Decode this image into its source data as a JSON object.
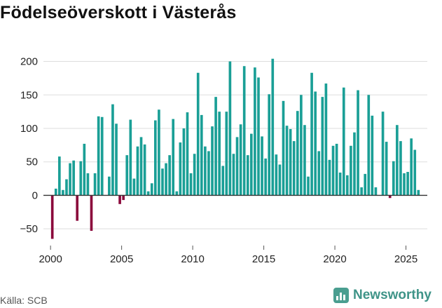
{
  "header": {
    "title": "Födelseöverskott i Västerås"
  },
  "footer": {
    "source": "Källa: SCB",
    "brand": "Newsworthy"
  },
  "colors": {
    "positive": "#1a9f96",
    "negative": "#8b0a3c",
    "grid": "#dddddd",
    "zero_line": "#333333",
    "brand": "#3f9488"
  },
  "chart_data": {
    "type": "bar",
    "title": "Födelseöverskott i Västerås",
    "xlabel": "",
    "ylabel": "",
    "xlim": [
      1999.5,
      2026.5
    ],
    "ylim": [
      -75,
      210
    ],
    "yticks": [
      -50,
      0,
      50,
      100,
      150,
      200
    ],
    "ytick_labels": [
      "−50",
      "0",
      "50",
      "100",
      "150",
      "200"
    ],
    "xticks": [
      2000,
      2005,
      2010,
      2015,
      2020,
      2025
    ],
    "xtick_labels": [
      "2000",
      "2005",
      "2010",
      "2015",
      "2020",
      "2025"
    ],
    "grid": true,
    "x": [
      2000.125,
      2000.375,
      2000.625,
      2000.875,
      2001.125,
      2001.375,
      2001.625,
      2001.875,
      2002.125,
      2002.375,
      2002.625,
      2002.875,
      2003.125,
      2003.375,
      2003.625,
      2003.875,
      2004.125,
      2004.375,
      2004.625,
      2004.875,
      2005.125,
      2005.375,
      2005.625,
      2005.875,
      2006.125,
      2006.375,
      2006.625,
      2006.875,
      2007.125,
      2007.375,
      2007.625,
      2007.875,
      2008.125,
      2008.375,
      2008.625,
      2008.875,
      2009.125,
      2009.375,
      2009.625,
      2009.875,
      2010.125,
      2010.375,
      2010.625,
      2010.875,
      2011.125,
      2011.375,
      2011.625,
      2011.875,
      2012.125,
      2012.375,
      2012.625,
      2012.875,
      2013.125,
      2013.375,
      2013.625,
      2013.875,
      2014.125,
      2014.375,
      2014.625,
      2014.875,
      2015.125,
      2015.375,
      2015.625,
      2015.875,
      2016.125,
      2016.375,
      2016.625,
      2016.875,
      2017.125,
      2017.375,
      2017.625,
      2017.875,
      2018.125,
      2018.375,
      2018.625,
      2018.875,
      2019.125,
      2019.375,
      2019.625,
      2019.875,
      2020.125,
      2020.375,
      2020.625,
      2020.875,
      2021.125,
      2021.375,
      2021.625,
      2021.875,
      2022.125,
      2022.375,
      2022.625,
      2022.875,
      2023.125,
      2023.375,
      2023.625,
      2023.875,
      2024.125,
      2024.375,
      2024.625,
      2024.875,
      2025.125,
      2025.375,
      2025.625,
      2025.875
    ],
    "values": [
      -65,
      10,
      58,
      8,
      24,
      48,
      52,
      -38,
      51,
      77,
      33,
      -53,
      33,
      118,
      117,
      0,
      28,
      136,
      107,
      -13,
      -7,
      60,
      113,
      25,
      73,
      87,
      76,
      6,
      18,
      112,
      128,
      40,
      48,
      60,
      114,
      6,
      79,
      100,
      124,
      33,
      62,
      183,
      120,
      73,
      66,
      103,
      147,
      125,
      44,
      125,
      200,
      62,
      87,
      106,
      193,
      60,
      92,
      191,
      176,
      88,
      55,
      151,
      204,
      61,
      46,
      141,
      104,
      99,
      81,
      126,
      150,
      105,
      28,
      183,
      155,
      66,
      147,
      167,
      53,
      74,
      77,
      34,
      161,
      30,
      74,
      94,
      157,
      12,
      32,
      150,
      119,
      12,
      0,
      125,
      80,
      -4,
      51,
      105,
      81,
      33,
      35,
      85,
      68,
      8
    ]
  }
}
